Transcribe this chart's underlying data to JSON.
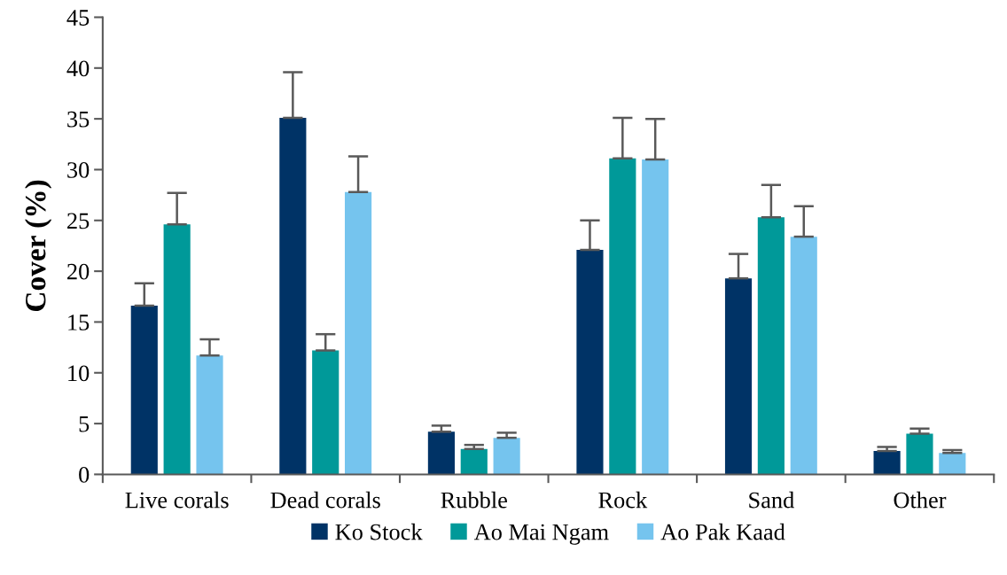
{
  "chart_data": {
    "type": "bar",
    "ylabel": "Cover (%)",
    "categories": [
      "Live corals",
      "Dead corals",
      "Rubble",
      "Rock",
      "Sand",
      "Other"
    ],
    "series": [
      {
        "name": "Ko Stock",
        "color": "#003366",
        "values": [
          16.6,
          35.1,
          4.2,
          22.1,
          19.3,
          2.3
        ],
        "errors": [
          [
            16.6,
            18.8
          ],
          [
            35.1,
            39.6
          ],
          [
            4.2,
            4.8
          ],
          [
            22.1,
            25.0
          ],
          [
            19.3,
            21.7
          ],
          [
            2.3,
            2.7
          ]
        ]
      },
      {
        "name": "Ao Mai Ngam",
        "color": "#009999",
        "values": [
          24.6,
          12.2,
          2.5,
          31.1,
          25.3,
          4.0
        ],
        "errors": [
          [
            24.6,
            27.7
          ],
          [
            12.2,
            13.8
          ],
          [
            2.5,
            2.9
          ],
          [
            31.1,
            35.1
          ],
          [
            25.3,
            28.5
          ],
          [
            4.0,
            4.5
          ]
        ]
      },
      {
        "name": "Ao Pak Kaad",
        "color": "#75c4ee",
        "values": [
          11.7,
          27.8,
          3.6,
          31.0,
          23.4,
          2.1
        ],
        "errors": [
          [
            11.7,
            13.3
          ],
          [
            27.8,
            31.3
          ],
          [
            3.6,
            4.1
          ],
          [
            31.0,
            35.0
          ],
          [
            23.4,
            26.4
          ],
          [
            2.1,
            2.4
          ]
        ]
      }
    ],
    "ylim": [
      0,
      45
    ],
    "yticks": [
      0,
      5,
      10,
      15,
      20,
      25,
      30,
      35,
      40,
      45
    ],
    "grid": false,
    "legend": "bottom"
  }
}
